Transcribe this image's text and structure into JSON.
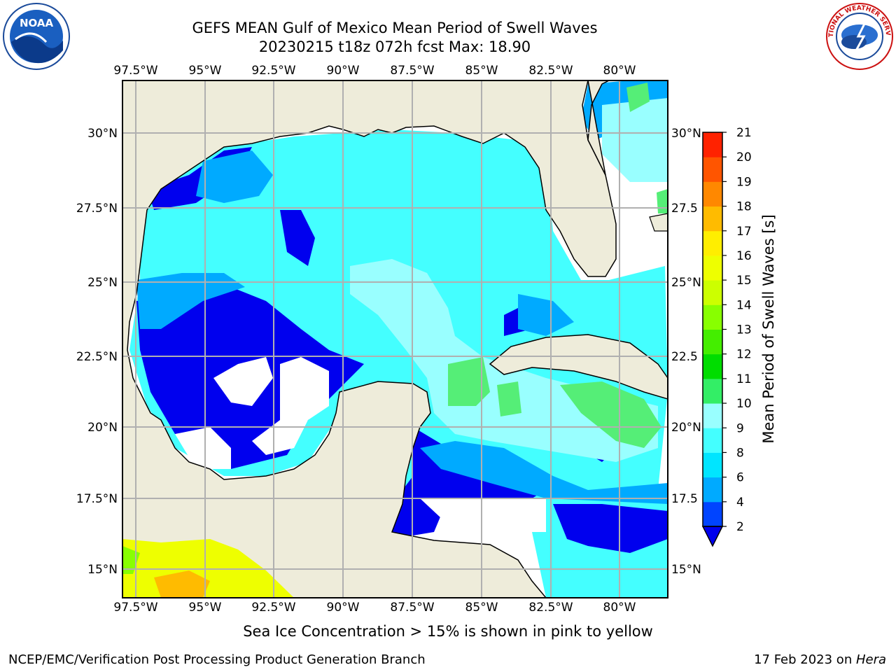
{
  "title": {
    "line1": "GEFS MEAN Gulf of Mexico Mean Period of Swell Waves",
    "line2": "20230215 t18z 072h fcst   Max: 18.90"
  },
  "logos": {
    "left": "NOAA",
    "right": "NATIONAL WEATHER SERVICE"
  },
  "map": {
    "lon_labels": [
      "97.5°W",
      "95°W",
      "92.5°W",
      "90°W",
      "87.5°W",
      "85°W",
      "82.5°W",
      "80°W"
    ],
    "lat_labels_left": [
      "30°N",
      "27.5°N",
      "25°N",
      "22.5°N",
      "20°N",
      "17.5°N",
      "15°N"
    ],
    "lat_labels_right": [
      "30°N",
      "27.5",
      "25°N",
      "22.5",
      "20°N",
      "17.5",
      "15°N"
    ],
    "gridlines": true,
    "land_color": "#eeecda",
    "no_data_color": "#ffffff"
  },
  "colorbar": {
    "label": "Mean Period of Swell Waves [s]",
    "ticks": [
      "2",
      "4",
      "6",
      "8",
      "9",
      "10",
      "11",
      "12",
      "13",
      "14",
      "15",
      "16",
      "17",
      "18",
      "19",
      "20",
      "21"
    ],
    "colors": [
      "#0044ff",
      "#00aaff",
      "#00e5ff",
      "#44ffff",
      "#99ffff",
      "#33ee66",
      "#00dd00",
      "#44ee00",
      "#88ff00",
      "#ccff00",
      "#eeff00",
      "#ffee00",
      "#ffbb00",
      "#ff8800",
      "#ff5500",
      "#ff2200"
    ],
    "under_color": "#0000ee"
  },
  "footnote": "Sea Ice Concentration > 15% is shown in pink to yellow",
  "footer": {
    "left": "NCEP/EMC/Verification Post Processing Product Generation Branch",
    "date": "17 Feb 2023 on ",
    "machine": "Hera"
  }
}
